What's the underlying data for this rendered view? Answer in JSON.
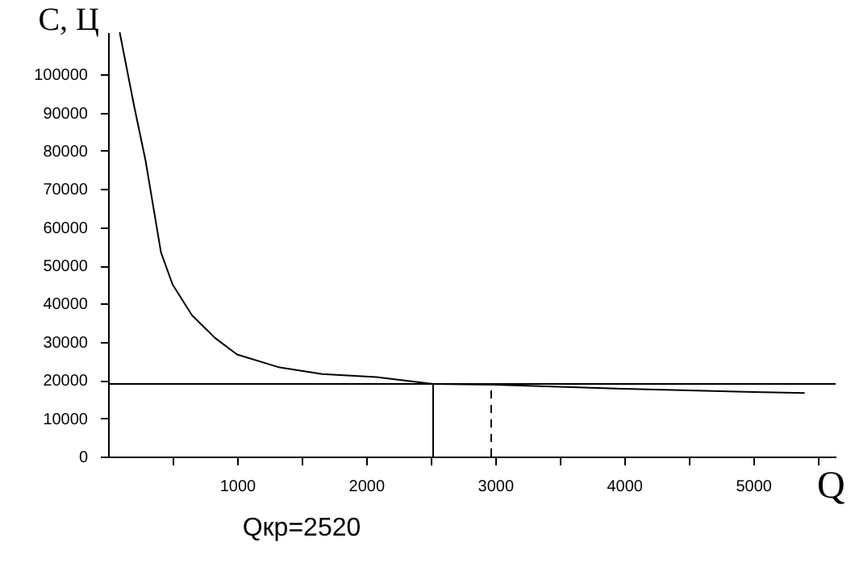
{
  "chart_data": {
    "type": "line",
    "xlabel": "Q",
    "ylabel": "С, Ц",
    "annotations": [
      "Qкр=2520"
    ],
    "xlim": [
      0,
      5640
    ],
    "ylim": [
      0,
      111000
    ],
    "xticks": [
      {
        "value": 500,
        "label": null
      },
      1000,
      {
        "value": 1500,
        "label": null
      },
      2000,
      {
        "value": 2500,
        "label": null
      },
      3000,
      {
        "value": 3500,
        "label": null
      },
      4000,
      {
        "value": 4500,
        "label": null
      },
      5000,
      {
        "value": 5500,
        "label": null
      }
    ],
    "yticks": [
      0,
      10000,
      20000,
      30000,
      40000,
      50000,
      60000,
      70000,
      80000,
      90000,
      100000
    ],
    "grid": false,
    "marker": "none",
    "series": [
      {
        "color": "#000000",
        "line_style": "solid",
        "x": [
          90,
          200,
          290,
          410,
          500,
          650,
          830,
          1000,
          1330,
          1660,
          2080,
          2520,
          3000,
          4000,
          5000,
          5400
        ],
        "values": [
          111000,
          92000,
          77500,
          53400,
          45000,
          37000,
          31000,
          26700,
          23300,
          21600,
          20800,
          19000,
          18800,
          17700,
          16900,
          16600
        ]
      },
      {
        "color": "#000000",
        "line_style": "solid",
        "x": [
          0,
          5640
        ],
        "values": [
          19000,
          19000
        ]
      },
      {
        "color": "#000000",
        "line_style": "solid",
        "x": [
          2520,
          2520
        ],
        "values": [
          0,
          19000
        ]
      },
      {
        "color": "#000000",
        "line_style": "dashed",
        "x": [
          2970,
          2970
        ],
        "values": [
          0,
          19000
        ]
      }
    ]
  }
}
